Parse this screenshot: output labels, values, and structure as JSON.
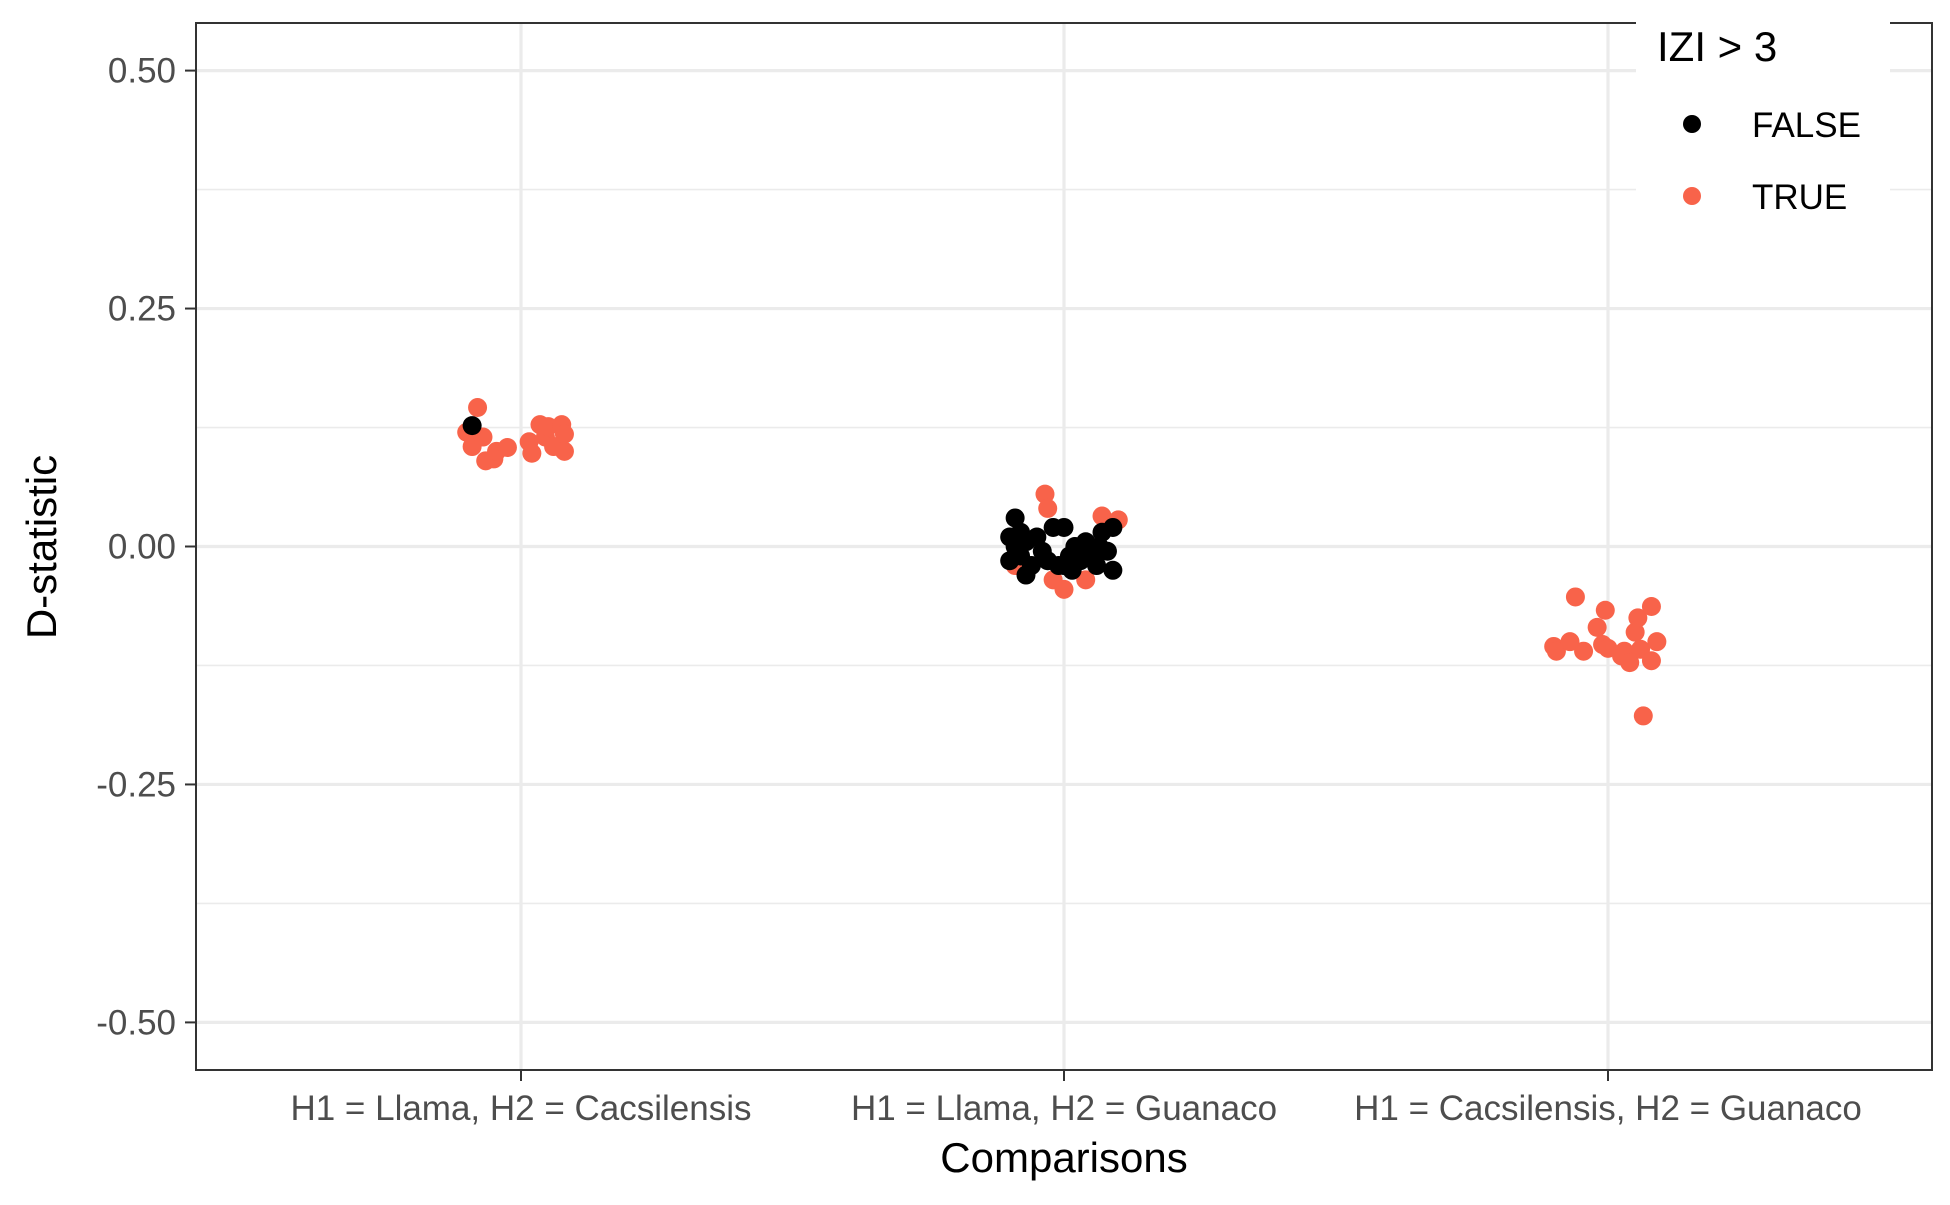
{
  "chart_data": {
    "type": "scatter",
    "title": "",
    "xlabel": "Comparisons",
    "ylabel": "D-statistic",
    "categories": [
      "H1 = Llama, H2 = Cacsilensis",
      "H1 = Llama, H2 = Guanaco",
      "H1 = Cacsilensis, H2 = Guanaco"
    ],
    "ylim": [
      -0.55,
      0.55
    ],
    "yticks": [
      0.5,
      0.25,
      0.0,
      -0.25,
      -0.5
    ],
    "ytick_labels": [
      "0.50",
      "0.25",
      "0.00",
      "-0.25",
      "-0.50"
    ],
    "grid": true,
    "legend": {
      "title": "IZI > 3",
      "position": "top-right",
      "entries": [
        {
          "label": "FALSE",
          "color": "#000000"
        },
        {
          "label": "TRUE",
          "color": "#f8634a"
        }
      ]
    },
    "series": [
      {
        "name": "FALSE",
        "color": "#000000",
        "points": [
          {
            "category": 0,
            "jitter": -0.09,
            "y": 0.127
          },
          {
            "category": 1,
            "jitter": -0.09,
            "y": 0.03
          },
          {
            "category": 1,
            "jitter": -0.1,
            "y": 0.01
          },
          {
            "category": 1,
            "jitter": -0.09,
            "y": 0.0
          },
          {
            "category": 1,
            "jitter": -0.08,
            "y": -0.01
          },
          {
            "category": 1,
            "jitter": -0.07,
            "y": 0.005
          },
          {
            "category": 1,
            "jitter": -0.06,
            "y": -0.02
          },
          {
            "category": 1,
            "jitter": -0.07,
            "y": -0.03
          },
          {
            "category": 1,
            "jitter": -0.05,
            "y": 0.01
          },
          {
            "category": 1,
            "jitter": -0.04,
            "y": -0.005
          },
          {
            "category": 1,
            "jitter": -0.03,
            "y": -0.015
          },
          {
            "category": 1,
            "jitter": -0.02,
            "y": 0.02
          },
          {
            "category": 1,
            "jitter": -0.01,
            "y": -0.02
          },
          {
            "category": 1,
            "jitter": 0.0,
            "y": 0.02
          },
          {
            "category": 1,
            "jitter": 0.01,
            "y": -0.01
          },
          {
            "category": 1,
            "jitter": 0.015,
            "y": -0.025
          },
          {
            "category": 1,
            "jitter": 0.02,
            "y": 0.0
          },
          {
            "category": 1,
            "jitter": 0.03,
            "y": -0.015
          },
          {
            "category": 1,
            "jitter": 0.04,
            "y": 0.005
          },
          {
            "category": 1,
            "jitter": 0.05,
            "y": -0.01
          },
          {
            "category": 1,
            "jitter": 0.06,
            "y": -0.02
          },
          {
            "category": 1,
            "jitter": 0.07,
            "y": 0.015
          },
          {
            "category": 1,
            "jitter": 0.08,
            "y": -0.005
          },
          {
            "category": 1,
            "jitter": 0.09,
            "y": -0.025
          },
          {
            "category": 1,
            "jitter": 0.09,
            "y": 0.02
          },
          {
            "category": 1,
            "jitter": -0.1,
            "y": -0.015
          },
          {
            "category": 1,
            "jitter": -0.08,
            "y": 0.015
          },
          {
            "category": 1,
            "jitter": 0.0,
            "y": -0.02
          },
          {
            "category": 1,
            "jitter": 0.03,
            "y": -0.005
          },
          {
            "category": 1,
            "jitter": 0.065,
            "y": 0.0
          }
        ]
      },
      {
        "name": "TRUE",
        "color": "#f8634a",
        "points": [
          {
            "category": 0,
            "jitter": -0.1,
            "y": 0.12
          },
          {
            "category": 0,
            "jitter": -0.09,
            "y": 0.105
          },
          {
            "category": 0,
            "jitter": -0.08,
            "y": 0.146
          },
          {
            "category": 0,
            "jitter": -0.07,
            "y": 0.115
          },
          {
            "category": 0,
            "jitter": -0.065,
            "y": 0.09
          },
          {
            "category": 0,
            "jitter": -0.05,
            "y": 0.092
          },
          {
            "category": 0,
            "jitter": -0.045,
            "y": 0.1
          },
          {
            "category": 0,
            "jitter": -0.025,
            "y": 0.104
          },
          {
            "category": 0,
            "jitter": 0.015,
            "y": 0.11
          },
          {
            "category": 0,
            "jitter": 0.02,
            "y": 0.098
          },
          {
            "category": 0,
            "jitter": 0.035,
            "y": 0.128
          },
          {
            "category": 0,
            "jitter": 0.045,
            "y": 0.115
          },
          {
            "category": 0,
            "jitter": 0.05,
            "y": 0.126
          },
          {
            "category": 0,
            "jitter": 0.06,
            "y": 0.105
          },
          {
            "category": 0,
            "jitter": 0.075,
            "y": 0.128
          },
          {
            "category": 0,
            "jitter": 0.08,
            "y": 0.1
          },
          {
            "category": 0,
            "jitter": 0.08,
            "y": 0.118
          },
          {
            "category": 1,
            "jitter": -0.035,
            "y": 0.055
          },
          {
            "category": 1,
            "jitter": -0.03,
            "y": 0.04
          },
          {
            "category": 1,
            "jitter": -0.02,
            "y": -0.035
          },
          {
            "category": 1,
            "jitter": 0.0,
            "y": -0.045
          },
          {
            "category": 1,
            "jitter": 0.04,
            "y": -0.035
          },
          {
            "category": 1,
            "jitter": 0.07,
            "y": 0.032
          },
          {
            "category": 1,
            "jitter": 0.1,
            "y": 0.028
          },
          {
            "category": 1,
            "jitter": -0.09,
            "y": -0.02
          },
          {
            "category": 2,
            "jitter": -0.1,
            "y": -0.105
          },
          {
            "category": 2,
            "jitter": -0.095,
            "y": -0.11
          },
          {
            "category": 2,
            "jitter": -0.07,
            "y": -0.1
          },
          {
            "category": 2,
            "jitter": -0.06,
            "y": -0.053
          },
          {
            "category": 2,
            "jitter": -0.045,
            "y": -0.11
          },
          {
            "category": 2,
            "jitter": -0.02,
            "y": -0.085
          },
          {
            "category": 2,
            "jitter": -0.01,
            "y": -0.103
          },
          {
            "category": 2,
            "jitter": -0.005,
            "y": -0.067
          },
          {
            "category": 2,
            "jitter": 0.0,
            "y": -0.107
          },
          {
            "category": 2,
            "jitter": 0.025,
            "y": -0.115
          },
          {
            "category": 2,
            "jitter": 0.03,
            "y": -0.11
          },
          {
            "category": 2,
            "jitter": 0.04,
            "y": -0.122
          },
          {
            "category": 2,
            "jitter": 0.05,
            "y": -0.09
          },
          {
            "category": 2,
            "jitter": 0.055,
            "y": -0.075
          },
          {
            "category": 2,
            "jitter": 0.06,
            "y": -0.108
          },
          {
            "category": 2,
            "jitter": 0.065,
            "y": -0.178
          },
          {
            "category": 2,
            "jitter": 0.08,
            "y": -0.063
          },
          {
            "category": 2,
            "jitter": 0.08,
            "y": -0.12
          },
          {
            "category": 2,
            "jitter": 0.09,
            "y": -0.1
          }
        ]
      }
    ]
  }
}
